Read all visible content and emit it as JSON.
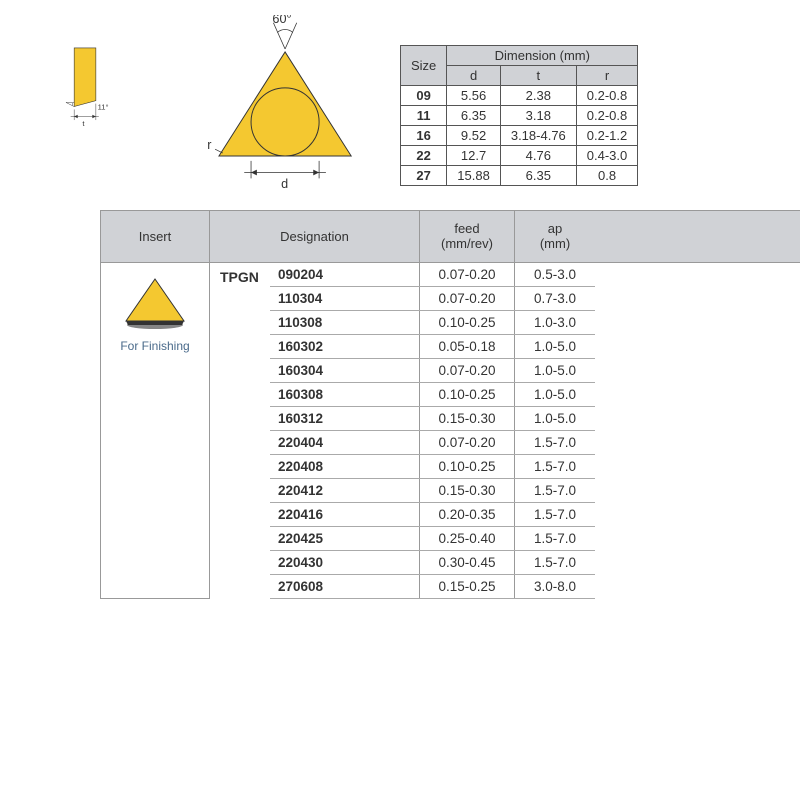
{
  "diagram": {
    "side_angle": "11°",
    "side_dim": "t",
    "top_angle": "60°",
    "top_r": "r",
    "top_d": "d",
    "colors": {
      "insert_fill": "#f4c830",
      "stroke": "#333333",
      "header_bg": "#d0d2d6",
      "text": "#333333",
      "insert_label": "#4a6a8a"
    }
  },
  "dim_table": {
    "header_size": "Size",
    "header_main": "Dimension (mm)",
    "subheaders": [
      "d",
      "t",
      "r"
    ],
    "rows": [
      {
        "size": "09",
        "d": "5.56",
        "t": "2.38",
        "r": "0.2-0.8"
      },
      {
        "size": "11",
        "d": "6.35",
        "t": "3.18",
        "r": "0.2-0.8"
      },
      {
        "size": "16",
        "d": "9.52",
        "t": "3.18-4.76",
        "r": "0.2-1.2"
      },
      {
        "size": "22",
        "d": "12.7",
        "t": "4.76",
        "r": "0.4-3.0"
      },
      {
        "size": "27",
        "d": "15.88",
        "t": "6.35",
        "r": "0.8"
      }
    ]
  },
  "main_table": {
    "headers": {
      "insert": "Insert",
      "designation": "Designation",
      "feed": "feed\n(mm/rev)",
      "ap": "ap\n(mm)"
    },
    "insert_label": "For Finishing",
    "designation_prefix": "TPGN",
    "rows": [
      {
        "code": "090204",
        "feed": "0.07-0.20",
        "ap": "0.5-3.0"
      },
      {
        "code": "110304",
        "feed": "0.07-0.20",
        "ap": "0.7-3.0"
      },
      {
        "code": "110308",
        "feed": "0.10-0.25",
        "ap": "1.0-3.0"
      },
      {
        "code": "160302",
        "feed": "0.05-0.18",
        "ap": "1.0-5.0"
      },
      {
        "code": "160304",
        "feed": "0.07-0.20",
        "ap": "1.0-5.0"
      },
      {
        "code": "160308",
        "feed": "0.10-0.25",
        "ap": "1.0-5.0"
      },
      {
        "code": "160312",
        "feed": "0.15-0.30",
        "ap": "1.0-5.0"
      },
      {
        "code": "220404",
        "feed": "0.07-0.20",
        "ap": "1.5-7.0"
      },
      {
        "code": "220408",
        "feed": "0.10-0.25",
        "ap": "1.5-7.0"
      },
      {
        "code": "220412",
        "feed": "0.15-0.30",
        "ap": "1.5-7.0"
      },
      {
        "code": "220416",
        "feed": "0.20-0.35",
        "ap": "1.5-7.0"
      },
      {
        "code": "220425",
        "feed": "0.25-0.40",
        "ap": "1.5-7.0"
      },
      {
        "code": "220430",
        "feed": "0.30-0.45",
        "ap": "1.5-7.0"
      },
      {
        "code": "270608",
        "feed": "0.15-0.25",
        "ap": "3.0-8.0"
      }
    ]
  }
}
